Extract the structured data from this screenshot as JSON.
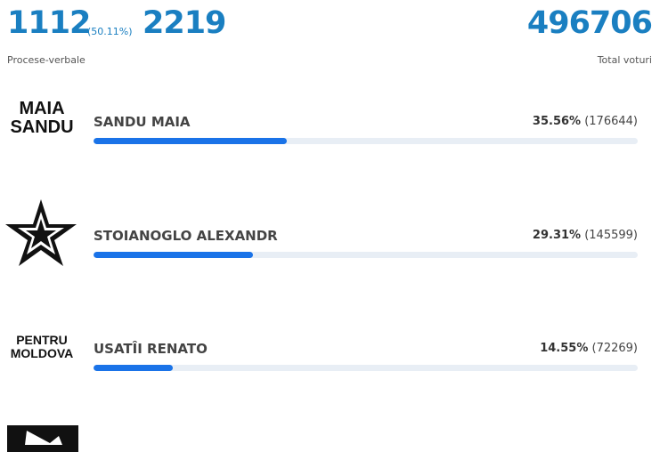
{
  "header": {
    "counted": "1112",
    "counted_percent": "(50.11%)",
    "total": "2219",
    "counted_label": "Procese-verbale",
    "total_votes": "496706",
    "total_votes_label": "Total voturi"
  },
  "candidates": [
    {
      "logo_lines": [
        "MAIA",
        "SANDU"
      ],
      "name": "SANDU MAIA",
      "percent": 35.56,
      "percent_label": "35.56%",
      "votes_label": "(176644)"
    },
    {
      "logo_lines": [],
      "name": "STOIANOGLO ALEXANDR",
      "percent": 29.31,
      "percent_label": "29.31%",
      "votes_label": "(145599)"
    },
    {
      "logo_lines": [
        "PENTRU",
        "MOLDOVA"
      ],
      "name": "USATÎI RENATO",
      "percent": 14.55,
      "percent_label": "14.55%",
      "votes_label": "(72269)"
    }
  ]
}
